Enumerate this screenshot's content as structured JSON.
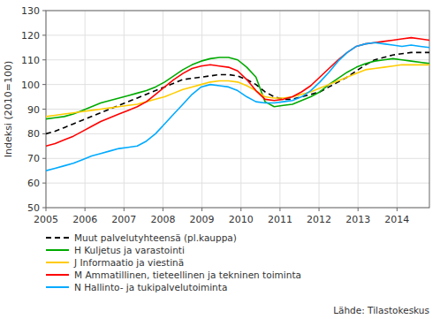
{
  "chart_data": {
    "type": "line",
    "ylabel": "Indeksi (2010=100)",
    "annotations": [
      "Lähde: Tilastokeskus"
    ],
    "x": [
      2005,
      2005.234047619,
      2005.468095238,
      2005.702142857,
      2005.936190476,
      2006.170238095,
      2006.404285714,
      2006.638333333,
      2006.872380952,
      2007.106428571,
      2007.34047619,
      2007.57452381,
      2007.808571429,
      2008.042619048,
      2008.276666667,
      2008.510714286,
      2008.744761905,
      2008.978809524,
      2009.212857143,
      2009.446904762,
      2009.680952381,
      2009.915,
      2010.149047619,
      2010.383095238,
      2010.617142857,
      2010.851190476,
      2011.085238095,
      2011.319285714,
      2011.553333333,
      2011.787380952,
      2012.021428571,
      2012.25547619,
      2012.48952381,
      2012.723571429,
      2012.957619048,
      2013.191666667,
      2013.425714286,
      2013.659761905,
      2013.893809524,
      2014.127857143,
      2014.361904762,
      2014.595952381,
      2014.83
    ],
    "xlim": [
      2005.0,
      2014.83
    ],
    "xticks": [
      2005,
      2006,
      2007,
      2008,
      2009,
      2010,
      2011,
      2012,
      2013,
      2014
    ],
    "ylim": [
      50,
      130
    ],
    "yticks": [
      50,
      60,
      70,
      80,
      90,
      100,
      110,
      120,
      130
    ],
    "grid": true,
    "legend": "bottom",
    "series": [
      {
        "name": "Muut palvelutyhteensä (pl.kauppa)",
        "color": "#000000",
        "line_style": "dashed",
        "values": [
          80,
          81,
          82.5,
          84,
          85.5,
          87,
          88.5,
          90,
          91.5,
          93,
          94.5,
          96,
          97.5,
          99,
          100.5,
          102,
          102.5,
          103,
          103.5,
          104,
          104,
          103.5,
          102,
          100,
          97,
          95,
          94,
          94,
          95,
          96,
          97,
          99,
          101,
          103,
          105.5,
          108,
          110,
          111,
          112,
          112.5,
          113,
          113,
          113
        ]
      },
      {
        "name": "H Kuljetus ja varastointi",
        "color": "#00aa00",
        "line_style": "solid",
        "values": [
          86,
          86.5,
          87,
          88,
          89.5,
          91,
          92.5,
          93.5,
          94.5,
          95.5,
          96.5,
          97.5,
          99,
          101,
          103.5,
          106,
          108,
          109.5,
          110.5,
          111,
          111,
          110,
          107,
          103,
          93,
          91,
          91.5,
          92,
          93.5,
          95,
          97,
          100,
          102.5,
          105,
          107,
          108.5,
          109.5,
          110,
          110.5,
          110,
          109.5,
          109,
          108.5
        ]
      },
      {
        "name": "J Informaatio ja viestinä",
        "color": "#ffcc00",
        "line_style": "solid",
        "values": [
          87,
          87.5,
          88,
          88.5,
          89,
          89.5,
          90,
          90.5,
          91,
          91.5,
          92,
          93,
          94,
          95,
          96.5,
          98,
          99,
          100,
          101,
          101.5,
          101.5,
          101,
          99.5,
          97.5,
          95,
          94.5,
          94.5,
          95,
          96,
          97,
          98.5,
          100,
          101.5,
          103,
          104.5,
          106,
          106.5,
          107,
          107.5,
          108,
          108,
          108,
          108
        ]
      },
      {
        "name": "M Ammatillinen, tieteellinen ja tekninen toiminta",
        "color": "#ff0000",
        "line_style": "solid",
        "values": [
          75,
          76,
          77.5,
          79,
          81,
          83,
          85,
          86.5,
          88,
          89.5,
          91,
          93,
          96,
          99,
          102,
          104.5,
          106.5,
          107.5,
          108,
          107.5,
          107,
          105.5,
          102,
          97.5,
          94,
          93.5,
          94,
          95,
          97,
          99.5,
          103,
          106.5,
          110,
          113,
          115.5,
          116.5,
          117,
          117.5,
          118,
          118.5,
          119,
          118.5,
          118
        ]
      },
      {
        "name": "N Hallinto- ja tukipalvelutoiminta",
        "color": "#00aaff",
        "line_style": "solid",
        "values": [
          65,
          66,
          67,
          68,
          69.5,
          71,
          72,
          73,
          74,
          74.5,
          75,
          77,
          80,
          84,
          88,
          92,
          96,
          99,
          100,
          99.5,
          99,
          97.5,
          95,
          93,
          92.5,
          92.5,
          93,
          93.5,
          95,
          97.5,
          101,
          105,
          109.5,
          113,
          115.5,
          116.5,
          117,
          116.5,
          116,
          115.5,
          116,
          115.5,
          115
        ]
      }
    ]
  }
}
